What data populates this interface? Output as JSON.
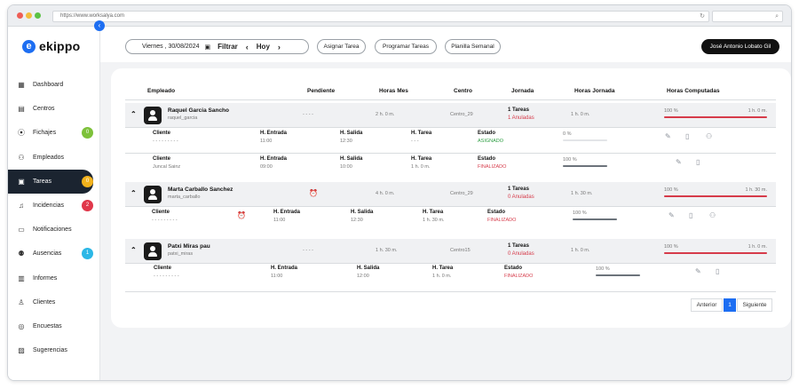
{
  "browser": {
    "url": "https://www.worksalya.com"
  },
  "app": {
    "name": "ekippo",
    "logo_letter": "e"
  },
  "sidebar": {
    "items": [
      {
        "label": "Dashboard",
        "icon": "grid-icon",
        "glyph": "▦"
      },
      {
        "label": "Centros",
        "icon": "building-icon",
        "glyph": "▤"
      },
      {
        "label": "Fichajes",
        "icon": "location-pin-icon",
        "glyph": "⦿",
        "badge": "0",
        "badge_color": "#7dc13a"
      },
      {
        "label": "Empleados",
        "icon": "users-icon",
        "glyph": "⚇"
      },
      {
        "label": "Tareas",
        "icon": "task-calendar-icon",
        "glyph": "▣",
        "badge": "0",
        "badge_color": "#f2b21c",
        "active": true
      },
      {
        "label": "Incidencias",
        "icon": "bell-icon",
        "glyph": "♫",
        "badge": "2",
        "badge_color": "#e0374a"
      },
      {
        "label": "Notificaciones",
        "icon": "chat-icon",
        "glyph": "▭"
      },
      {
        "label": "Ausencias",
        "icon": "user-x-icon",
        "glyph": "⚉",
        "badge": "1",
        "badge_color": "#2bb7e6"
      },
      {
        "label": "Informes",
        "icon": "report-icon",
        "glyph": "▥"
      },
      {
        "label": "Clientes",
        "icon": "user-icon",
        "glyph": "♙"
      },
      {
        "label": "Encuestas",
        "icon": "survey-icon",
        "glyph": "◎"
      },
      {
        "label": "Sugerencias",
        "icon": "inbox-icon",
        "glyph": "▨"
      }
    ]
  },
  "topbar": {
    "date": "Viernes , 30/08/2024",
    "filter_label": "Filtrar",
    "today_label": "Hoy",
    "prev_glyph": "‹",
    "next_glyph": "›",
    "assign_label": "Asignar Tarea",
    "schedule_label": "Programar Tareas",
    "weekly_label": "Planilla Semanal",
    "user_name": "José Antonio Lobato Gil"
  },
  "table": {
    "headers": {
      "empleado": "Empleado",
      "pendiente": "Pendiente",
      "horas_mes": "Horas Mes",
      "centro": "Centro",
      "jornada": "Jornada",
      "horas_jornada": "Horas Jornada",
      "horas_computadas": "Horas Computadas"
    },
    "sub_labels": {
      "cliente": "Cliente",
      "entrada": "H. Entrada",
      "salida": "H. Salida",
      "tarea": "H. Tarea",
      "estado": "Estado"
    },
    "groups": [
      {
        "name": "Raquel Garcia Sancho",
        "username": "raquel_garcia",
        "pendiente": "- - - -",
        "horas_mes": "2 h. 0 m.",
        "centro": "Centro_29",
        "jornada_tareas": "1 Tareas",
        "jornada_anuladas": "1 Anuladas",
        "horas_jornada": "1 h. 0 m.",
        "computed_pct": "100 %",
        "computed_value": 1.0,
        "computed_time": "1 h. 0 m.",
        "tasks": [
          {
            "cliente": "- - - - - - - - -",
            "entrada": "11:00",
            "salida": "12:30",
            "tarea": "- - -",
            "estado": "ASIGNADO",
            "estado_color": "green",
            "pct": "0 %",
            "progress": 0.0
          },
          {
            "cliente": "Juncal Sainz",
            "entrada": "09:00",
            "salida": "10:00",
            "tarea": "1 h. 0 m.",
            "estado": "FINALIZADO",
            "estado_color": "red",
            "pct": "100 %",
            "progress": 1.0
          }
        ]
      },
      {
        "name": "Marta Carballo Sanchez",
        "username": "marta_carballo",
        "pendiente_icon": "alarm-icon",
        "horas_mes": "4 h. 0 m.",
        "centro": "Centro_29",
        "jornada_tareas": "1 Tareas",
        "jornada_anuladas": "0 Anuladas",
        "horas_jornada": "1 h. 30 m.",
        "computed_pct": "100 %",
        "computed_value": 1.0,
        "computed_time": "1 h. 30 m.",
        "tasks": [
          {
            "cliente": "- - - - - - - - -",
            "entrada": "11:00",
            "salida": "12:30",
            "tarea": "1 h. 30 m.",
            "estado": "FINALIZADO",
            "estado_color": "red",
            "pct": "100 %",
            "progress": 1.0
          }
        ]
      },
      {
        "name": "Patxi Miras pau",
        "username": "patxi_miras",
        "pendiente": "- - - -",
        "horas_mes": "1 h. 30 m.",
        "centro": "Centro15",
        "jornada_tareas": "1 Tareas",
        "jornada_anuladas": "0 Anuladas",
        "horas_jornada": "1 h. 0 m.",
        "computed_pct": "100 %",
        "computed_value": 1.0,
        "computed_time": "1 h. 0 m.",
        "tasks": [
          {
            "cliente": "- - - - - - - - -",
            "entrada": "11:00",
            "salida": "12:00",
            "tarea": "1 h. 0 m.",
            "estado": "FINALIZADO",
            "estado_color": "red",
            "pct": "100 %",
            "progress": 1.0
          }
        ]
      }
    ]
  },
  "pagination": {
    "prev": "Anterior",
    "page": "1",
    "next": "Siguiente"
  },
  "colors": {
    "accent": "#1d6ef2",
    "sidebar_active": "#1b2430",
    "danger": "#d63b4a",
    "success": "#2f9e44",
    "progress": "#6c737b"
  }
}
